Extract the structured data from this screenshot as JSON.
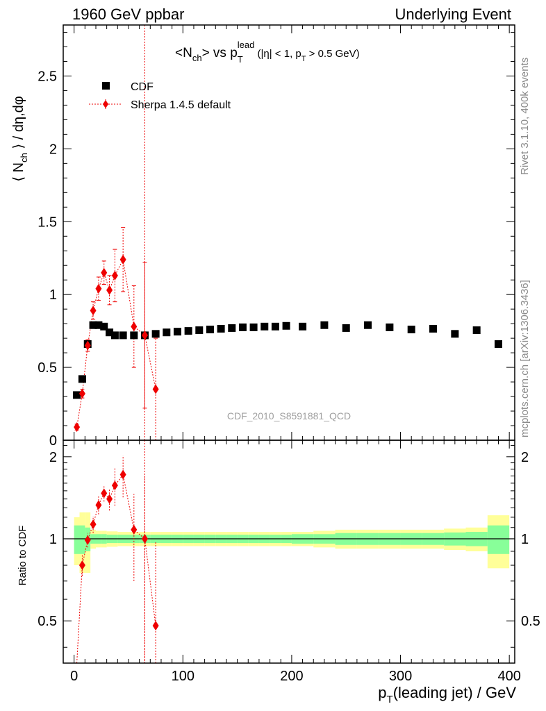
{
  "header": {
    "left": "1960 GeV ppbar",
    "right": "Underlying Event"
  },
  "side_labels": {
    "rivet": "Rivet 3.1.10,  400k events",
    "mcplots": "mcplots.cern.ch [arXiv:1306.3436]"
  },
  "watermark": "CDF_2010_S8591881_QCD",
  "chart_data": {
    "type": "scatter",
    "title": {
      "lhs": "<N",
      "lhs_sub": "ch",
      "mid": "> vs p",
      "mid_sub": "T",
      "mid_sup": "lead",
      "cond1": " (|η| < 1, p",
      "cond_sub": "T",
      "cond2": " > 0.5 GeV)"
    },
    "ylabel": {
      "a": "⟨ N",
      "sub": "ch",
      "b": " ⟩ / dη,dφ"
    },
    "xlabel": {
      "a": "p",
      "sub": "T",
      "b": "(leading jet) / GeV"
    },
    "ratio_ylabel": "Ratio to CDF",
    "xlim": [
      -10,
      405
    ],
    "ylim": [
      0,
      2.85
    ],
    "ratio_ylim": [
      0.35,
      2.3
    ],
    "x_ticks": [
      "0",
      "100",
      "200",
      "300",
      "400"
    ],
    "x_tick_values": [
      0,
      100,
      200,
      300,
      400
    ],
    "y_ticks": [
      "0",
      "0.5",
      "1",
      "1.5",
      "2",
      "2.5"
    ],
    "y_tick_values": [
      0,
      0.5,
      1,
      1.5,
      2,
      2.5
    ],
    "ratio_ticks": [
      "0.5",
      "1",
      "2"
    ],
    "ratio_tick_values": [
      0.5,
      1,
      2
    ],
    "vline_x": 65,
    "legend": [
      {
        "name": "CDF",
        "color": "#000000",
        "marker": "square"
      },
      {
        "name": "Sherpa 1.4.5 default",
        "color": "#ee0000",
        "marker": "diamond"
      }
    ],
    "cdf": {
      "name": "CDF",
      "bins": [
        [
          0,
          5
        ],
        [
          5,
          10
        ],
        [
          10,
          15
        ],
        [
          15,
          20
        ],
        [
          20,
          25
        ],
        [
          25,
          30
        ],
        [
          30,
          35
        ],
        [
          35,
          40
        ],
        [
          40,
          50
        ],
        [
          50,
          60
        ],
        [
          60,
          70
        ],
        [
          70,
          80
        ],
        [
          80,
          90
        ],
        [
          90,
          100
        ],
        [
          100,
          110
        ],
        [
          110,
          120
        ],
        [
          120,
          130
        ],
        [
          130,
          140
        ],
        [
          140,
          150
        ],
        [
          150,
          160
        ],
        [
          160,
          170
        ],
        [
          170,
          180
        ],
        [
          180,
          190
        ],
        [
          190,
          200
        ],
        [
          200,
          220
        ],
        [
          220,
          240
        ],
        [
          240,
          260
        ],
        [
          260,
          280
        ],
        [
          280,
          300
        ],
        [
          300,
          320
        ],
        [
          320,
          340
        ],
        [
          340,
          360
        ],
        [
          360,
          380
        ],
        [
          380,
          400
        ]
      ],
      "x": [
        2.5,
        7.5,
        12.5,
        17.5,
        22.5,
        27.5,
        32.5,
        37.5,
        45,
        55,
        65,
        75,
        85,
        95,
        105,
        115,
        125,
        135,
        145,
        155,
        165,
        175,
        185,
        195,
        210,
        230,
        250,
        270,
        290,
        310,
        330,
        350,
        370,
        390
      ],
      "y": [
        0.31,
        0.42,
        0.66,
        0.79,
        0.79,
        0.78,
        0.74,
        0.72,
        0.72,
        0.72,
        0.72,
        0.73,
        0.74,
        0.745,
        0.75,
        0.755,
        0.76,
        0.765,
        0.77,
        0.775,
        0.775,
        0.78,
        0.78,
        0.785,
        0.78,
        0.79,
        0.77,
        0.79,
        0.775,
        0.76,
        0.765,
        0.73,
        0.755,
        0.66
      ],
      "band_stat": [
        0.12,
        0.12,
        0.1,
        0.04,
        0.04,
        0.04,
        0.035,
        0.035,
        0.035,
        0.035,
        0.035,
        0.035,
        0.035,
        0.035,
        0.035,
        0.035,
        0.035,
        0.035,
        0.035,
        0.035,
        0.035,
        0.035,
        0.035,
        0.035,
        0.04,
        0.04,
        0.05,
        0.05,
        0.05,
        0.05,
        0.05,
        0.055,
        0.06,
        0.12
      ],
      "band_tot": [
        0.2,
        0.25,
        0.25,
        0.08,
        0.07,
        0.07,
        0.065,
        0.065,
        0.06,
        0.06,
        0.06,
        0.06,
        0.06,
        0.06,
        0.06,
        0.06,
        0.06,
        0.06,
        0.06,
        0.06,
        0.06,
        0.06,
        0.06,
        0.06,
        0.06,
        0.07,
        0.08,
        0.08,
        0.08,
        0.08,
        0.08,
        0.09,
        0.1,
        0.22
      ]
    },
    "sherpa": {
      "name": "Sherpa 1.4.5 default",
      "x": [
        2.5,
        7.5,
        12.5,
        17.5,
        22.5,
        27.5,
        32.5,
        37.5,
        45,
        55,
        65,
        75
      ],
      "y": [
        0.09,
        0.32,
        0.65,
        0.89,
        1.04,
        1.15,
        1.03,
        1.13,
        1.24,
        0.78,
        0.72,
        0.35
      ],
      "yerr": [
        0.02,
        0.03,
        0.04,
        0.06,
        0.08,
        0.08,
        0.1,
        0.18,
        0.22,
        0.28,
        0.5,
        0.35
      ],
      "ratio": [
        0.29,
        0.8,
        0.99,
        1.13,
        1.33,
        1.47,
        1.4,
        1.57,
        1.72,
        1.08,
        1.0,
        0.48
      ],
      "ratio_err": [
        0.05,
        0.07,
        0.06,
        0.08,
        0.1,
        0.1,
        0.13,
        0.25,
        0.3,
        0.38,
        0.7,
        0.5
      ]
    },
    "grid": false,
    "legend_position": "top-left"
  }
}
